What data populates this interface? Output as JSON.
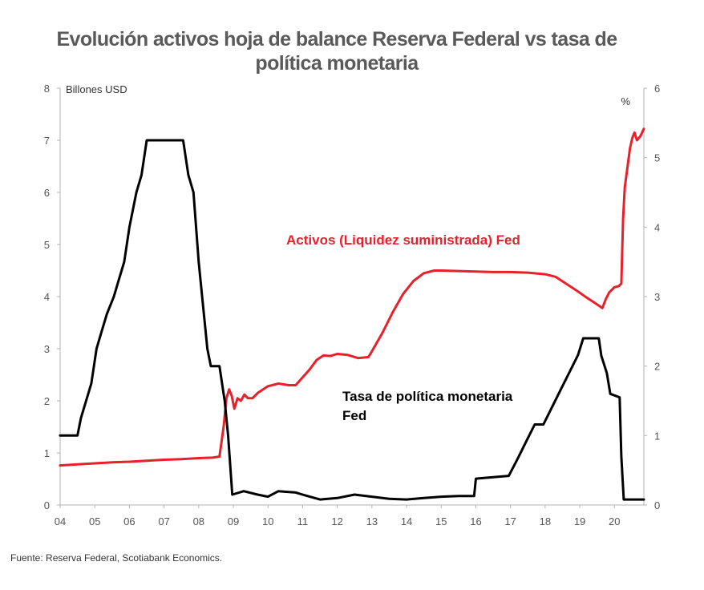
{
  "chart_data": {
    "type": "line",
    "title_line1": "Evolución activos hoja de balance Reserva Federal vs tasa de",
    "title_line2": "política monetaria",
    "y_left_label": "Billones USD",
    "y_right_label": "%",
    "y_left_lim": [
      0,
      8
    ],
    "y_right_lim": [
      0,
      6
    ],
    "y_left_ticks": [
      "0",
      "1",
      "2",
      "3",
      "4",
      "5",
      "6",
      "7",
      "8"
    ],
    "y_right_ticks": [
      "0",
      "1",
      "2",
      "3",
      "4",
      "5",
      "6"
    ],
    "x_lim": [
      2004,
      2020.85
    ],
    "x_ticks": [
      {
        "x": 2004,
        "label": "04"
      },
      {
        "x": 2005,
        "label": "05"
      },
      {
        "x": 2006,
        "label": "06"
      },
      {
        "x": 2007,
        "label": "07"
      },
      {
        "x": 2008,
        "label": "08"
      },
      {
        "x": 2009,
        "label": "09"
      },
      {
        "x": 2010,
        "label": "10"
      },
      {
        "x": 2011,
        "label": "11"
      },
      {
        "x": 2012,
        "label": "12"
      },
      {
        "x": 2013,
        "label": "13"
      },
      {
        "x": 2014,
        "label": "14"
      },
      {
        "x": 2015,
        "label": "15"
      },
      {
        "x": 2016,
        "label": "16"
      },
      {
        "x": 2017,
        "label": "17"
      },
      {
        "x": 2018,
        "label": "18"
      },
      {
        "x": 2019,
        "label": "19"
      },
      {
        "x": 2020,
        "label": "20"
      }
    ],
    "grid": false,
    "series": [
      {
        "name": "Activos (Liquidez suministrada) Fed",
        "axis": "left",
        "color": "#e8202a",
        "points": [
          [
            2004.0,
            0.76
          ],
          [
            2004.5,
            0.78
          ],
          [
            2005.0,
            0.8
          ],
          [
            2005.5,
            0.82
          ],
          [
            2006.0,
            0.83
          ],
          [
            2006.5,
            0.85
          ],
          [
            2007.0,
            0.87
          ],
          [
            2007.5,
            0.88
          ],
          [
            2008.0,
            0.9
          ],
          [
            2008.4,
            0.91
          ],
          [
            2008.6,
            0.93
          ],
          [
            2008.72,
            1.5
          ],
          [
            2008.8,
            2.05
          ],
          [
            2008.88,
            2.22
          ],
          [
            2008.95,
            2.1
          ],
          [
            2009.03,
            1.85
          ],
          [
            2009.12,
            2.05
          ],
          [
            2009.22,
            2.0
          ],
          [
            2009.32,
            2.12
          ],
          [
            2009.42,
            2.05
          ],
          [
            2009.55,
            2.05
          ],
          [
            2009.7,
            2.15
          ],
          [
            2010.0,
            2.28
          ],
          [
            2010.3,
            2.33
          ],
          [
            2010.6,
            2.3
          ],
          [
            2010.8,
            2.3
          ],
          [
            2011.0,
            2.45
          ],
          [
            2011.2,
            2.6
          ],
          [
            2011.4,
            2.78
          ],
          [
            2011.6,
            2.87
          ],
          [
            2011.8,
            2.86
          ],
          [
            2012.0,
            2.9
          ],
          [
            2012.3,
            2.88
          ],
          [
            2012.6,
            2.82
          ],
          [
            2012.9,
            2.84
          ],
          [
            2013.0,
            2.95
          ],
          [
            2013.3,
            3.3
          ],
          [
            2013.6,
            3.7
          ],
          [
            2013.9,
            4.05
          ],
          [
            2014.2,
            4.3
          ],
          [
            2014.5,
            4.45
          ],
          [
            2014.8,
            4.5
          ],
          [
            2015.0,
            4.5
          ],
          [
            2015.5,
            4.49
          ],
          [
            2016.0,
            4.48
          ],
          [
            2016.5,
            4.47
          ],
          [
            2017.0,
            4.47
          ],
          [
            2017.5,
            4.46
          ],
          [
            2018.0,
            4.43
          ],
          [
            2018.3,
            4.38
          ],
          [
            2018.6,
            4.25
          ],
          [
            2018.9,
            4.12
          ],
          [
            2019.2,
            3.98
          ],
          [
            2019.5,
            3.85
          ],
          [
            2019.65,
            3.78
          ],
          [
            2019.75,
            3.95
          ],
          [
            2019.85,
            4.08
          ],
          [
            2020.0,
            4.18
          ],
          [
            2020.12,
            4.2
          ],
          [
            2020.2,
            4.25
          ],
          [
            2020.25,
            5.5
          ],
          [
            2020.3,
            6.1
          ],
          [
            2020.38,
            6.5
          ],
          [
            2020.45,
            6.85
          ],
          [
            2020.52,
            7.05
          ],
          [
            2020.58,
            7.15
          ],
          [
            2020.65,
            7.0
          ],
          [
            2020.75,
            7.08
          ],
          [
            2020.85,
            7.22
          ]
        ]
      },
      {
        "name": "Tasa de política monetaria Fed",
        "axis": "right",
        "color": "#000000",
        "points": [
          [
            2004.0,
            1.0
          ],
          [
            2004.5,
            1.0
          ],
          [
            2004.6,
            1.25
          ],
          [
            2004.75,
            1.5
          ],
          [
            2004.9,
            1.75
          ],
          [
            2005.05,
            2.25
          ],
          [
            2005.2,
            2.5
          ],
          [
            2005.35,
            2.75
          ],
          [
            2005.55,
            3.0
          ],
          [
            2005.7,
            3.25
          ],
          [
            2005.85,
            3.5
          ],
          [
            2006.0,
            4.0
          ],
          [
            2006.2,
            4.5
          ],
          [
            2006.35,
            4.75
          ],
          [
            2006.5,
            5.25
          ],
          [
            2007.0,
            5.25
          ],
          [
            2007.55,
            5.25
          ],
          [
            2007.7,
            4.75
          ],
          [
            2007.85,
            4.5
          ],
          [
            2008.0,
            3.5
          ],
          [
            2008.1,
            3.0
          ],
          [
            2008.25,
            2.25
          ],
          [
            2008.35,
            2.0
          ],
          [
            2008.6,
            2.0
          ],
          [
            2008.75,
            1.5
          ],
          [
            2008.85,
            1.0
          ],
          [
            2008.97,
            0.15
          ],
          [
            2009.3,
            0.2
          ],
          [
            2009.7,
            0.15
          ],
          [
            2010.0,
            0.12
          ],
          [
            2010.3,
            0.2
          ],
          [
            2010.8,
            0.18
          ],
          [
            2011.0,
            0.15
          ],
          [
            2011.5,
            0.08
          ],
          [
            2012.0,
            0.1
          ],
          [
            2012.5,
            0.15
          ],
          [
            2013.0,
            0.12
          ],
          [
            2013.5,
            0.09
          ],
          [
            2014.0,
            0.08
          ],
          [
            2014.5,
            0.1
          ],
          [
            2015.0,
            0.12
          ],
          [
            2015.5,
            0.13
          ],
          [
            2015.95,
            0.13
          ],
          [
            2016.0,
            0.38
          ],
          [
            2016.5,
            0.4
          ],
          [
            2016.95,
            0.42
          ],
          [
            2017.2,
            0.66
          ],
          [
            2017.45,
            0.91
          ],
          [
            2017.7,
            1.16
          ],
          [
            2017.95,
            1.16
          ],
          [
            2018.2,
            1.41
          ],
          [
            2018.45,
            1.66
          ],
          [
            2018.7,
            1.91
          ],
          [
            2018.95,
            2.16
          ],
          [
            2019.1,
            2.4
          ],
          [
            2019.55,
            2.4
          ],
          [
            2019.62,
            2.15
          ],
          [
            2019.78,
            1.9
          ],
          [
            2019.88,
            1.6
          ],
          [
            2020.15,
            1.55
          ],
          [
            2020.2,
            0.7
          ],
          [
            2020.27,
            0.08
          ],
          [
            2020.85,
            0.08
          ]
        ]
      }
    ],
    "annotations": {
      "red_label": "Activos (Liquidez suministrada) Fed",
      "black_label_line1": "Tasa de política monetaria",
      "black_label_line2": "Fed"
    },
    "source": "Fuente: Reserva Federal, Scotiabank Economics."
  }
}
